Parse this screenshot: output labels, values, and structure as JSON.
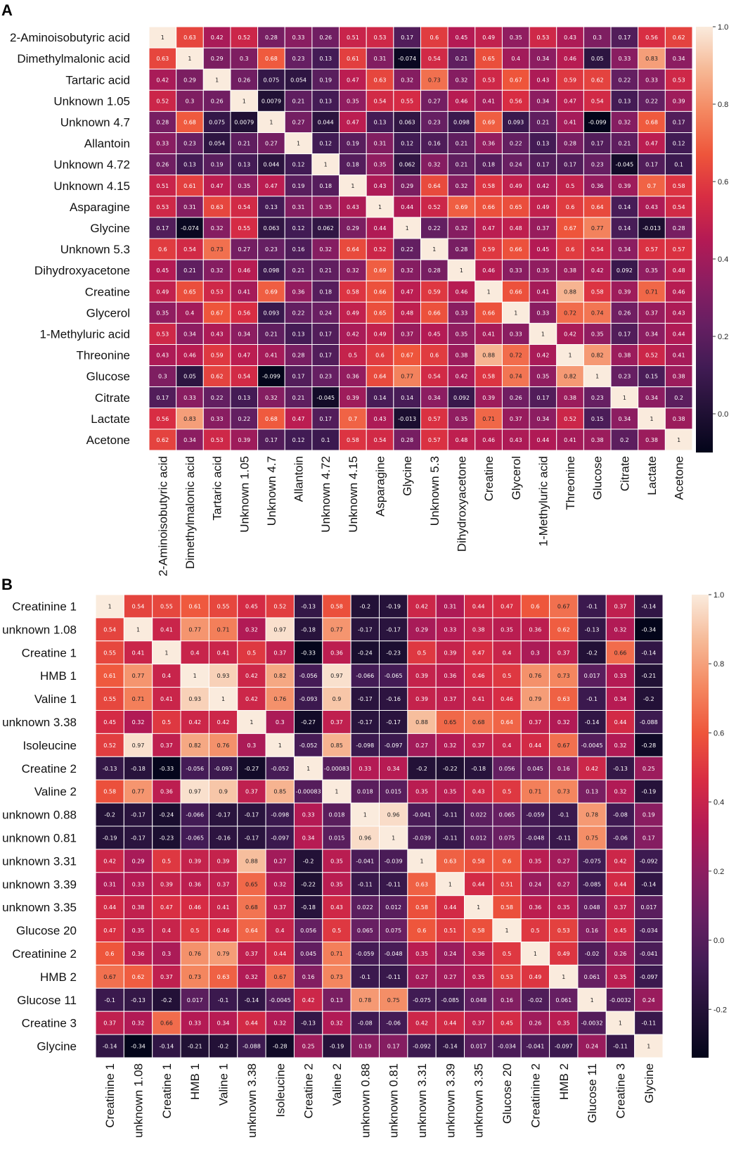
{
  "chart_data": [
    {
      "type": "heatmap",
      "panel": "A",
      "labels": [
        "2-Aminoisobutyric acid",
        "Dimethylmalonic acid",
        "Tartaric acid",
        "Unknown 1.05",
        "Unknown 4.7",
        "Allantoin",
        "Unknown 4.72",
        "Unknown 4.15",
        "Asparagine",
        "Glycine",
        "Unknown 5.3",
        "Dihydroxyacetone",
        "Creatine",
        "Glycerol",
        "1-Methyluric acid",
        "Threonine",
        "Glucose",
        "Citrate",
        "Lactate",
        "Acetone"
      ],
      "cells": [
        [
          "1",
          "0.63",
          "0.42",
          "0.52",
          "0.28",
          "0.33",
          "0.26",
          "0.51",
          "0.53",
          "0.17",
          "0.6",
          "0.45",
          "0.49",
          "0.35",
          "0.53",
          "0.43",
          "0.3",
          "0.17",
          "0.56",
          "0.62"
        ],
        [
          "0.63",
          "1",
          "0.29",
          "0.3",
          "0.68",
          "0.23",
          "0.13",
          "0.61",
          "0.31",
          "-0.074",
          "0.54",
          "0.21",
          "0.65",
          "0.4",
          "0.34",
          "0.46",
          "0.05",
          "0.33",
          "0.83",
          "0.34"
        ],
        [
          "0.42",
          "0.29",
          "1",
          "0.26",
          "0.075",
          "0.054",
          "0.19",
          "0.47",
          "0.63",
          "0.32",
          "0.73",
          "0.32",
          "0.53",
          "0.67",
          "0.43",
          "0.59",
          "0.62",
          "0.22",
          "0.33",
          "0.53"
        ],
        [
          "0.52",
          "0.3",
          "0.26",
          "1",
          "0.0079",
          "0.21",
          "0.13",
          "0.35",
          "0.54",
          "0.55",
          "0.27",
          "0.46",
          "0.41",
          "0.56",
          "0.34",
          "0.47",
          "0.54",
          "0.13",
          "0.22",
          "0.39"
        ],
        [
          "0.28",
          "0.68",
          "0.075",
          "0.0079",
          "1",
          "0.27",
          "0.044",
          "0.47",
          "0.13",
          "0.063",
          "0.23",
          "0.098",
          "0.69",
          "0.093",
          "0.21",
          "0.41",
          "-0.099",
          "0.32",
          "0.68",
          "0.17"
        ],
        [
          "0.33",
          "0.23",
          "0.054",
          "0.21",
          "0.27",
          "1",
          "0.12",
          "0.19",
          "0.31",
          "0.12",
          "0.16",
          "0.21",
          "0.36",
          "0.22",
          "0.13",
          "0.28",
          "0.17",
          "0.21",
          "0.47",
          "0.12"
        ],
        [
          "0.26",
          "0.13",
          "0.19",
          "0.13",
          "0.044",
          "0.12",
          "1",
          "0.18",
          "0.35",
          "0.062",
          "0.32",
          "0.21",
          "0.18",
          "0.24",
          "0.17",
          "0.17",
          "0.23",
          "-0.045",
          "0.17",
          "0.1"
        ],
        [
          "0.51",
          "0.61",
          "0.47",
          "0.35",
          "0.47",
          "0.19",
          "0.18",
          "1",
          "0.43",
          "0.29",
          "0.64",
          "0.32",
          "0.58",
          "0.49",
          "0.42",
          "0.5",
          "0.36",
          "0.39",
          "0.7",
          "0.58"
        ],
        [
          "0.53",
          "0.31",
          "0.63",
          "0.54",
          "0.13",
          "0.31",
          "0.35",
          "0.43",
          "1",
          "0.44",
          "0.52",
          "0.69",
          "0.66",
          "0.65",
          "0.49",
          "0.6",
          "0.64",
          "0.14",
          "0.43",
          "0.54"
        ],
        [
          "0.17",
          "-0.074",
          "0.32",
          "0.55",
          "0.063",
          "0.12",
          "0.062",
          "0.29",
          "0.44",
          "1",
          "0.22",
          "0.32",
          "0.47",
          "0.48",
          "0.37",
          "0.67",
          "0.77",
          "0.14",
          "-0.013",
          "0.28"
        ],
        [
          "0.6",
          "0.54",
          "0.73",
          "0.27",
          "0.23",
          "0.16",
          "0.32",
          "0.64",
          "0.52",
          "0.22",
          "1",
          "0.28",
          "0.59",
          "0.66",
          "0.45",
          "0.6",
          "0.54",
          "0.34",
          "0.57",
          "0.57"
        ],
        [
          "0.45",
          "0.21",
          "0.32",
          "0.46",
          "0.098",
          "0.21",
          "0.21",
          "0.32",
          "0.69",
          "0.32",
          "0.28",
          "1",
          "0.46",
          "0.33",
          "0.35",
          "0.38",
          "0.42",
          "0.092",
          "0.35",
          "0.48"
        ],
        [
          "0.49",
          "0.65",
          "0.53",
          "0.41",
          "0.69",
          "0.36",
          "0.18",
          "0.58",
          "0.66",
          "0.47",
          "0.59",
          "0.46",
          "1",
          "0.66",
          "0.41",
          "0.88",
          "0.58",
          "0.39",
          "0.71",
          "0.46"
        ],
        [
          "0.35",
          "0.4",
          "0.67",
          "0.56",
          "0.093",
          "0.22",
          "0.24",
          "0.49",
          "0.65",
          "0.48",
          "0.66",
          "0.33",
          "0.66",
          "1",
          "0.33",
          "0.72",
          "0.74",
          "0.26",
          "0.37",
          "0.43"
        ],
        [
          "0.53",
          "0.34",
          "0.43",
          "0.34",
          "0.21",
          "0.13",
          "0.17",
          "0.42",
          "0.49",
          "0.37",
          "0.45",
          "0.35",
          "0.41",
          "0.33",
          "1",
          "0.42",
          "0.35",
          "0.17",
          "0.34",
          "0.44"
        ],
        [
          "0.43",
          "0.46",
          "0.59",
          "0.47",
          "0.41",
          "0.28",
          "0.17",
          "0.5",
          "0.6",
          "0.67",
          "0.6",
          "0.38",
          "0.88",
          "0.72",
          "0.42",
          "1",
          "0.82",
          "0.38",
          "0.52",
          "0.41"
        ],
        [
          "0.3",
          "0.05",
          "0.62",
          "0.54",
          "-0.099",
          "0.17",
          "0.23",
          "0.36",
          "0.64",
          "0.77",
          "0.54",
          "0.42",
          "0.58",
          "0.74",
          "0.35",
          "0.82",
          "1",
          "0.23",
          "0.15",
          "0.38"
        ],
        [
          "0.17",
          "0.33",
          "0.22",
          "0.13",
          "0.32",
          "0.21",
          "-0.045",
          "0.39",
          "0.14",
          "0.14",
          "0.34",
          "0.092",
          "0.39",
          "0.26",
          "0.17",
          "0.38",
          "0.23",
          "1",
          "0.34",
          "0.2"
        ],
        [
          "0.56",
          "0.83",
          "0.33",
          "0.22",
          "0.68",
          "0.47",
          "0.17",
          "0.7",
          "0.43",
          "-0.013",
          "0.57",
          "0.35",
          "0.71",
          "0.37",
          "0.34",
          "0.52",
          "0.15",
          "0.34",
          "1",
          "0.38"
        ],
        [
          "0.62",
          "0.34",
          "0.53",
          "0.39",
          "0.17",
          "0.12",
          "0.1",
          "0.58",
          "0.54",
          "0.28",
          "0.57",
          "0.48",
          "0.46",
          "0.43",
          "0.44",
          "0.41",
          "0.38",
          "0.2",
          "0.38",
          "1"
        ]
      ],
      "vmin": -0.1,
      "vmax": 1.0,
      "colorbar_ticks": [
        "1.0",
        "0.8",
        "0.6",
        "0.4",
        "0.2",
        "0.0"
      ]
    },
    {
      "type": "heatmap",
      "panel": "B",
      "labels": [
        "Creatinine 1",
        "unknown 1.08",
        "Creatine 1",
        "HMB 1",
        "Valine 1",
        "unknown 3.38",
        "Isoleucine",
        "Creatine 2",
        "Valine 2",
        "unknown 0.88",
        "unknown 0.81",
        "unknown 3.31",
        "unknown 3.39",
        "unknown 3.35",
        "Glucose 20",
        "Creatinine 2",
        "HMB 2",
        "Glucose 11",
        "Creatine 3",
        "Glycine"
      ],
      "cells": [
        [
          "1",
          "0.54",
          "0.55",
          "0.61",
          "0.55",
          "0.45",
          "0.52",
          "-0.13",
          "0.58",
          "-0.2",
          "-0.19",
          "0.42",
          "0.31",
          "0.44",
          "0.47",
          "0.6",
          "0.67",
          "-0.1",
          "0.37",
          "-0.14"
        ],
        [
          "0.54",
          "1",
          "0.41",
          "0.77",
          "0.71",
          "0.32",
          "0.97",
          "-0.18",
          "0.77",
          "-0.17",
          "-0.17",
          "0.29",
          "0.33",
          "0.38",
          "0.35",
          "0.36",
          "0.62",
          "-0.13",
          "0.32",
          "-0.34"
        ],
        [
          "0.55",
          "0.41",
          "1",
          "0.4",
          "0.41",
          "0.5",
          "0.37",
          "-0.33",
          "0.36",
          "-0.24",
          "-0.23",
          "0.5",
          "0.39",
          "0.47",
          "0.4",
          "0.3",
          "0.37",
          "-0.2",
          "0.66",
          "-0.14"
        ],
        [
          "0.61",
          "0.77",
          "0.4",
          "1",
          "0.93",
          "0.42",
          "0.82",
          "-0.056",
          "0.97",
          "-0.066",
          "-0.065",
          "0.39",
          "0.36",
          "0.46",
          "0.5",
          "0.76",
          "0.73",
          "0.017",
          "0.33",
          "-0.21"
        ],
        [
          "0.55",
          "0.71",
          "0.41",
          "0.93",
          "1",
          "0.42",
          "0.76",
          "-0.093",
          "0.9",
          "-0.17",
          "-0.16",
          "0.39",
          "0.37",
          "0.41",
          "0.46",
          "0.79",
          "0.63",
          "-0.1",
          "0.34",
          "-0.2"
        ],
        [
          "0.45",
          "0.32",
          "0.5",
          "0.42",
          "0.42",
          "1",
          "0.3",
          "-0.27",
          "0.37",
          "-0.17",
          "-0.17",
          "0.88",
          "0.65",
          "0.68",
          "0.64",
          "0.37",
          "0.32",
          "-0.14",
          "0.44",
          "-0.088"
        ],
        [
          "0.52",
          "0.97",
          "0.37",
          "0.82",
          "0.76",
          "0.3",
          "1",
          "-0.052",
          "0.85",
          "-0.098",
          "-0.097",
          "0.27",
          "0.32",
          "0.37",
          "0.4",
          "0.44",
          "0.67",
          "-0.0045",
          "0.32",
          "-0.28"
        ],
        [
          "-0.13",
          "-0.18",
          "-0.33",
          "-0.056",
          "-0.093",
          "-0.27",
          "-0.052",
          "1",
          "-0.00083",
          "0.33",
          "0.34",
          "-0.2",
          "-0.22",
          "-0.18",
          "0.056",
          "0.045",
          "0.16",
          "0.42",
          "-0.13",
          "0.25"
        ],
        [
          "0.58",
          "0.77",
          "0.36",
          "0.97",
          "0.9",
          "0.37",
          "0.85",
          "-0.00083",
          "1",
          "0.018",
          "0.015",
          "0.35",
          "0.35",
          "0.43",
          "0.5",
          "0.71",
          "0.73",
          "0.13",
          "0.32",
          "-0.19"
        ],
        [
          "-0.2",
          "-0.17",
          "-0.24",
          "-0.066",
          "-0.17",
          "-0.17",
          "-0.098",
          "0.33",
          "0.018",
          "1",
          "0.96",
          "-0.041",
          "-0.11",
          "0.022",
          "0.065",
          "-0.059",
          "-0.1",
          "0.78",
          "-0.08",
          "0.19"
        ],
        [
          "-0.19",
          "-0.17",
          "-0.23",
          "-0.065",
          "-0.16",
          "-0.17",
          "-0.097",
          "0.34",
          "0.015",
          "0.96",
          "1",
          "-0.039",
          "-0.11",
          "0.012",
          "0.075",
          "-0.048",
          "-0.11",
          "0.75",
          "-0.06",
          "0.17"
        ],
        [
          "0.42",
          "0.29",
          "0.5",
          "0.39",
          "0.39",
          "0.88",
          "0.27",
          "-0.2",
          "0.35",
          "-0.041",
          "-0.039",
          "1",
          "0.63",
          "0.58",
          "0.6",
          "0.35",
          "0.27",
          "-0.075",
          "0.42",
          "-0.092"
        ],
        [
          "0.31",
          "0.33",
          "0.39",
          "0.36",
          "0.37",
          "0.65",
          "0.32",
          "-0.22",
          "0.35",
          "-0.11",
          "-0.11",
          "0.63",
          "1",
          "0.44",
          "0.51",
          "0.24",
          "0.27",
          "-0.085",
          "0.44",
          "-0.14"
        ],
        [
          "0.44",
          "0.38",
          "0.47",
          "0.46",
          "0.41",
          "0.68",
          "0.37",
          "-0.18",
          "0.43",
          "0.022",
          "0.012",
          "0.58",
          "0.44",
          "1",
          "0.58",
          "0.36",
          "0.35",
          "0.048",
          "0.37",
          "0.017"
        ],
        [
          "0.47",
          "0.35",
          "0.4",
          "0.5",
          "0.46",
          "0.64",
          "0.4",
          "0.056",
          "0.5",
          "0.065",
          "0.075",
          "0.6",
          "0.51",
          "0.58",
          "1",
          "0.5",
          "0.53",
          "0.16",
          "0.45",
          "-0.034"
        ],
        [
          "0.6",
          "0.36",
          "0.3",
          "0.76",
          "0.79",
          "0.37",
          "0.44",
          "0.045",
          "0.71",
          "-0.059",
          "-0.048",
          "0.35",
          "0.24",
          "0.36",
          "0.5",
          "1",
          "0.49",
          "-0.02",
          "0.26",
          "-0.041"
        ],
        [
          "0.67",
          "0.62",
          "0.37",
          "0.73",
          "0.63",
          "0.32",
          "0.67",
          "0.16",
          "0.73",
          "-0.1",
          "-0.11",
          "0.27",
          "0.27",
          "0.35",
          "0.53",
          "0.49",
          "1",
          "0.061",
          "0.35",
          "-0.097"
        ],
        [
          "-0.1",
          "-0.13",
          "-0.2",
          "0.017",
          "-0.1",
          "-0.14",
          "-0.0045",
          "0.42",
          "0.13",
          "0.78",
          "0.75",
          "-0.075",
          "-0.085",
          "0.048",
          "0.16",
          "-0.02",
          "0.061",
          "1",
          "-0.0032",
          "0.24"
        ],
        [
          "0.37",
          "0.32",
          "0.66",
          "0.33",
          "0.34",
          "0.44",
          "0.32",
          "-0.13",
          "0.32",
          "-0.08",
          "-0.06",
          "0.42",
          "0.44",
          "0.37",
          "0.45",
          "0.26",
          "0.35",
          "-0.0032",
          "1",
          "-0.11"
        ],
        [
          "-0.14",
          "-0.34",
          "-0.14",
          "-0.21",
          "-0.2",
          "-0.088",
          "-0.28",
          "0.25",
          "-0.19",
          "0.19",
          "0.17",
          "-0.092",
          "-0.14",
          "0.017",
          "-0.034",
          "-0.041",
          "-0.097",
          "0.24",
          "-0.11",
          "1"
        ]
      ],
      "vmin": -0.34,
      "vmax": 1.0,
      "colorbar_ticks": [
        "1.0",
        "0.8",
        "0.6",
        "0.4",
        "0.2",
        "0.0",
        "-0.2"
      ]
    }
  ]
}
